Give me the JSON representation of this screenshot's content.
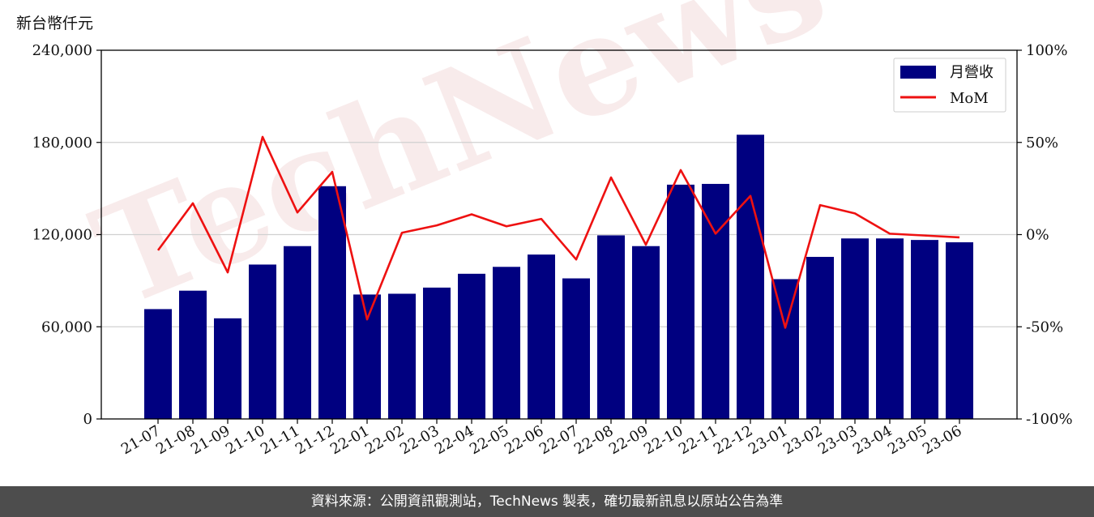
{
  "chart_data": {
    "type": "bar",
    "ylabel": "新台幣仟元",
    "categories": [
      "21-07",
      "21-08",
      "21-09",
      "21-10",
      "21-11",
      "21-12",
      "22-01",
      "22-02",
      "22-03",
      "22-04",
      "22-05",
      "22-06",
      "22-07",
      "22-08",
      "22-09",
      "22-10",
      "22-11",
      "22-12",
      "23-01",
      "23-02",
      "23-03",
      "23-04",
      "23-05",
      "23-06"
    ],
    "series": [
      {
        "name": "月營收",
        "type": "bar",
        "axis": "left",
        "color": "#000080",
        "values": [
          71500,
          83500,
          65500,
          100500,
          112500,
          151500,
          81000,
          81500,
          85500,
          94500,
          99000,
          107000,
          91500,
          119500,
          112500,
          152500,
          153000,
          185000,
          91000,
          105500,
          117500,
          117500,
          116500,
          115000
        ]
      },
      {
        "name": "MoM",
        "type": "line",
        "axis": "right",
        "color": "#ee1111",
        "unit": "%",
        "values": [
          -8.5,
          17,
          -20.5,
          53,
          12,
          34,
          -46,
          1,
          5,
          11,
          4.5,
          8.5,
          -13.5,
          31,
          -5.5,
          35,
          0.5,
          21,
          -50.5,
          16,
          11.5,
          0.5,
          -0.5,
          -1.5
        ]
      }
    ],
    "yleft": {
      "min": 0,
      "max": 240000,
      "ticks": [
        "0",
        "60,000",
        "120,000",
        "180,000",
        "240,000"
      ]
    },
    "yright": {
      "min": -100,
      "max": 100,
      "ticks": [
        "-100%",
        "-50%",
        "0%",
        "50%",
        "100%"
      ]
    },
    "legend": [
      "月營收",
      "MoM"
    ],
    "legend_position": "top-right",
    "grid": "horizontal",
    "watermark": "TechNews"
  },
  "footer": "資料來源：公開資訊觀測站，TechNews 製表，確切最新訊息以原站公告為準"
}
